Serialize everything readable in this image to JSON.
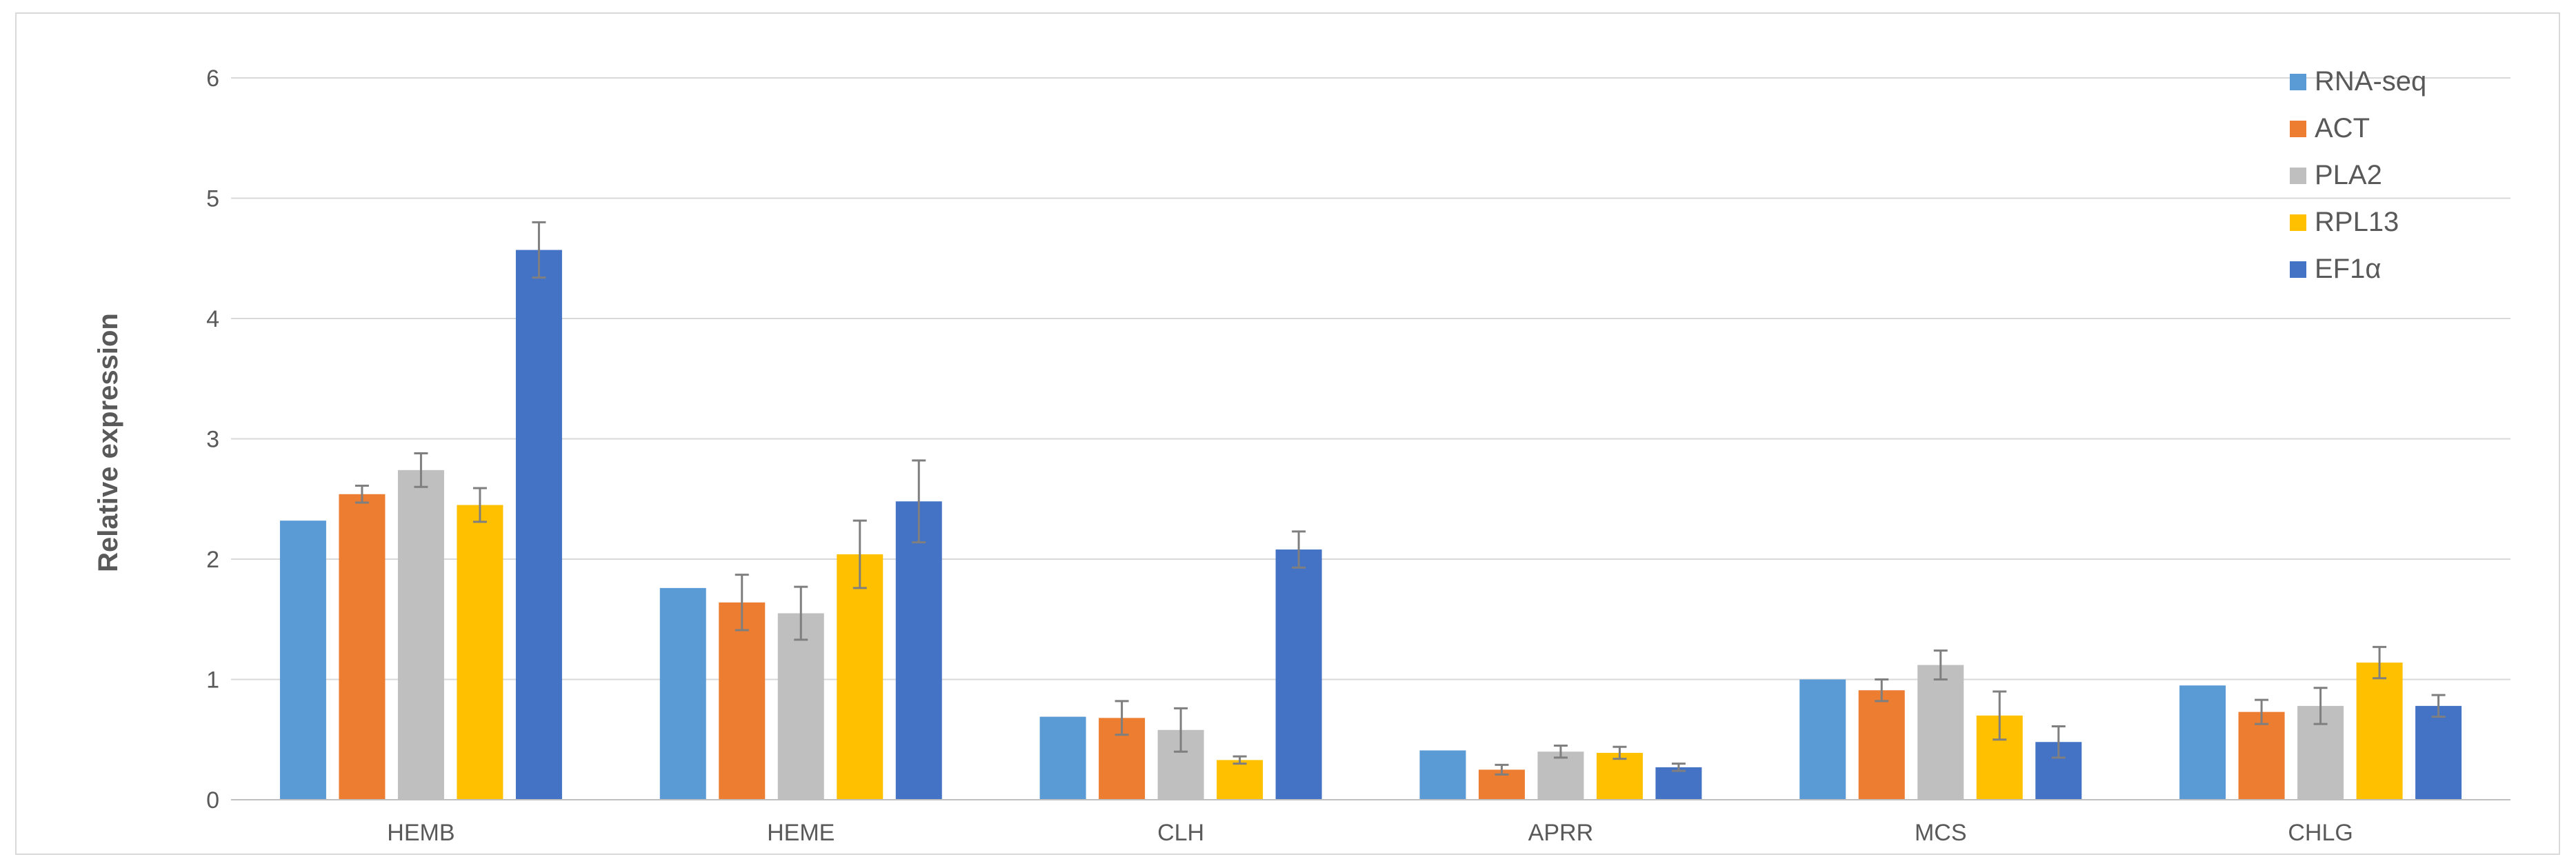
{
  "chart_data": {
    "type": "bar",
    "title": "",
    "xlabel": "",
    "ylabel": "Relative expression",
    "ylim": [
      0,
      6
    ],
    "yticks": [
      0,
      1,
      2,
      3,
      4,
      5,
      6
    ],
    "grid": true,
    "legend_position": "top-right",
    "categories": [
      "HEMB",
      "HEME",
      "CLH",
      "APRR",
      "MCS",
      "CHLG"
    ],
    "series": [
      {
        "name": "RNA-seq",
        "color": "#5B9BD5",
        "values": [
          2.32,
          1.76,
          0.69,
          0.41,
          1.0,
          0.95
        ],
        "errors": [
          0,
          0,
          0,
          0,
          0,
          0
        ]
      },
      {
        "name": "ACT",
        "color": "#ED7D31",
        "values": [
          2.54,
          1.64,
          0.68,
          0.25,
          0.91,
          0.73
        ],
        "errors": [
          0.07,
          0.23,
          0.14,
          0.04,
          0.09,
          0.1
        ]
      },
      {
        "name": "PLA2",
        "color": "#BFBFBF",
        "values": [
          2.74,
          1.55,
          0.58,
          0.4,
          1.12,
          0.78
        ],
        "errors": [
          0.14,
          0.22,
          0.18,
          0.05,
          0.12,
          0.15
        ]
      },
      {
        "name": "RPL13",
        "color": "#FFC000",
        "values": [
          2.45,
          2.04,
          0.33,
          0.39,
          0.7,
          1.14
        ],
        "errors": [
          0.14,
          0.28,
          0.03,
          0.05,
          0.2,
          0.13
        ]
      },
      {
        "name": "EF1α",
        "color": "#4472C4",
        "values": [
          4.57,
          2.48,
          2.08,
          0.27,
          0.48,
          0.78
        ],
        "errors": [
          0.23,
          0.34,
          0.15,
          0.03,
          0.13,
          0.09
        ]
      }
    ]
  }
}
